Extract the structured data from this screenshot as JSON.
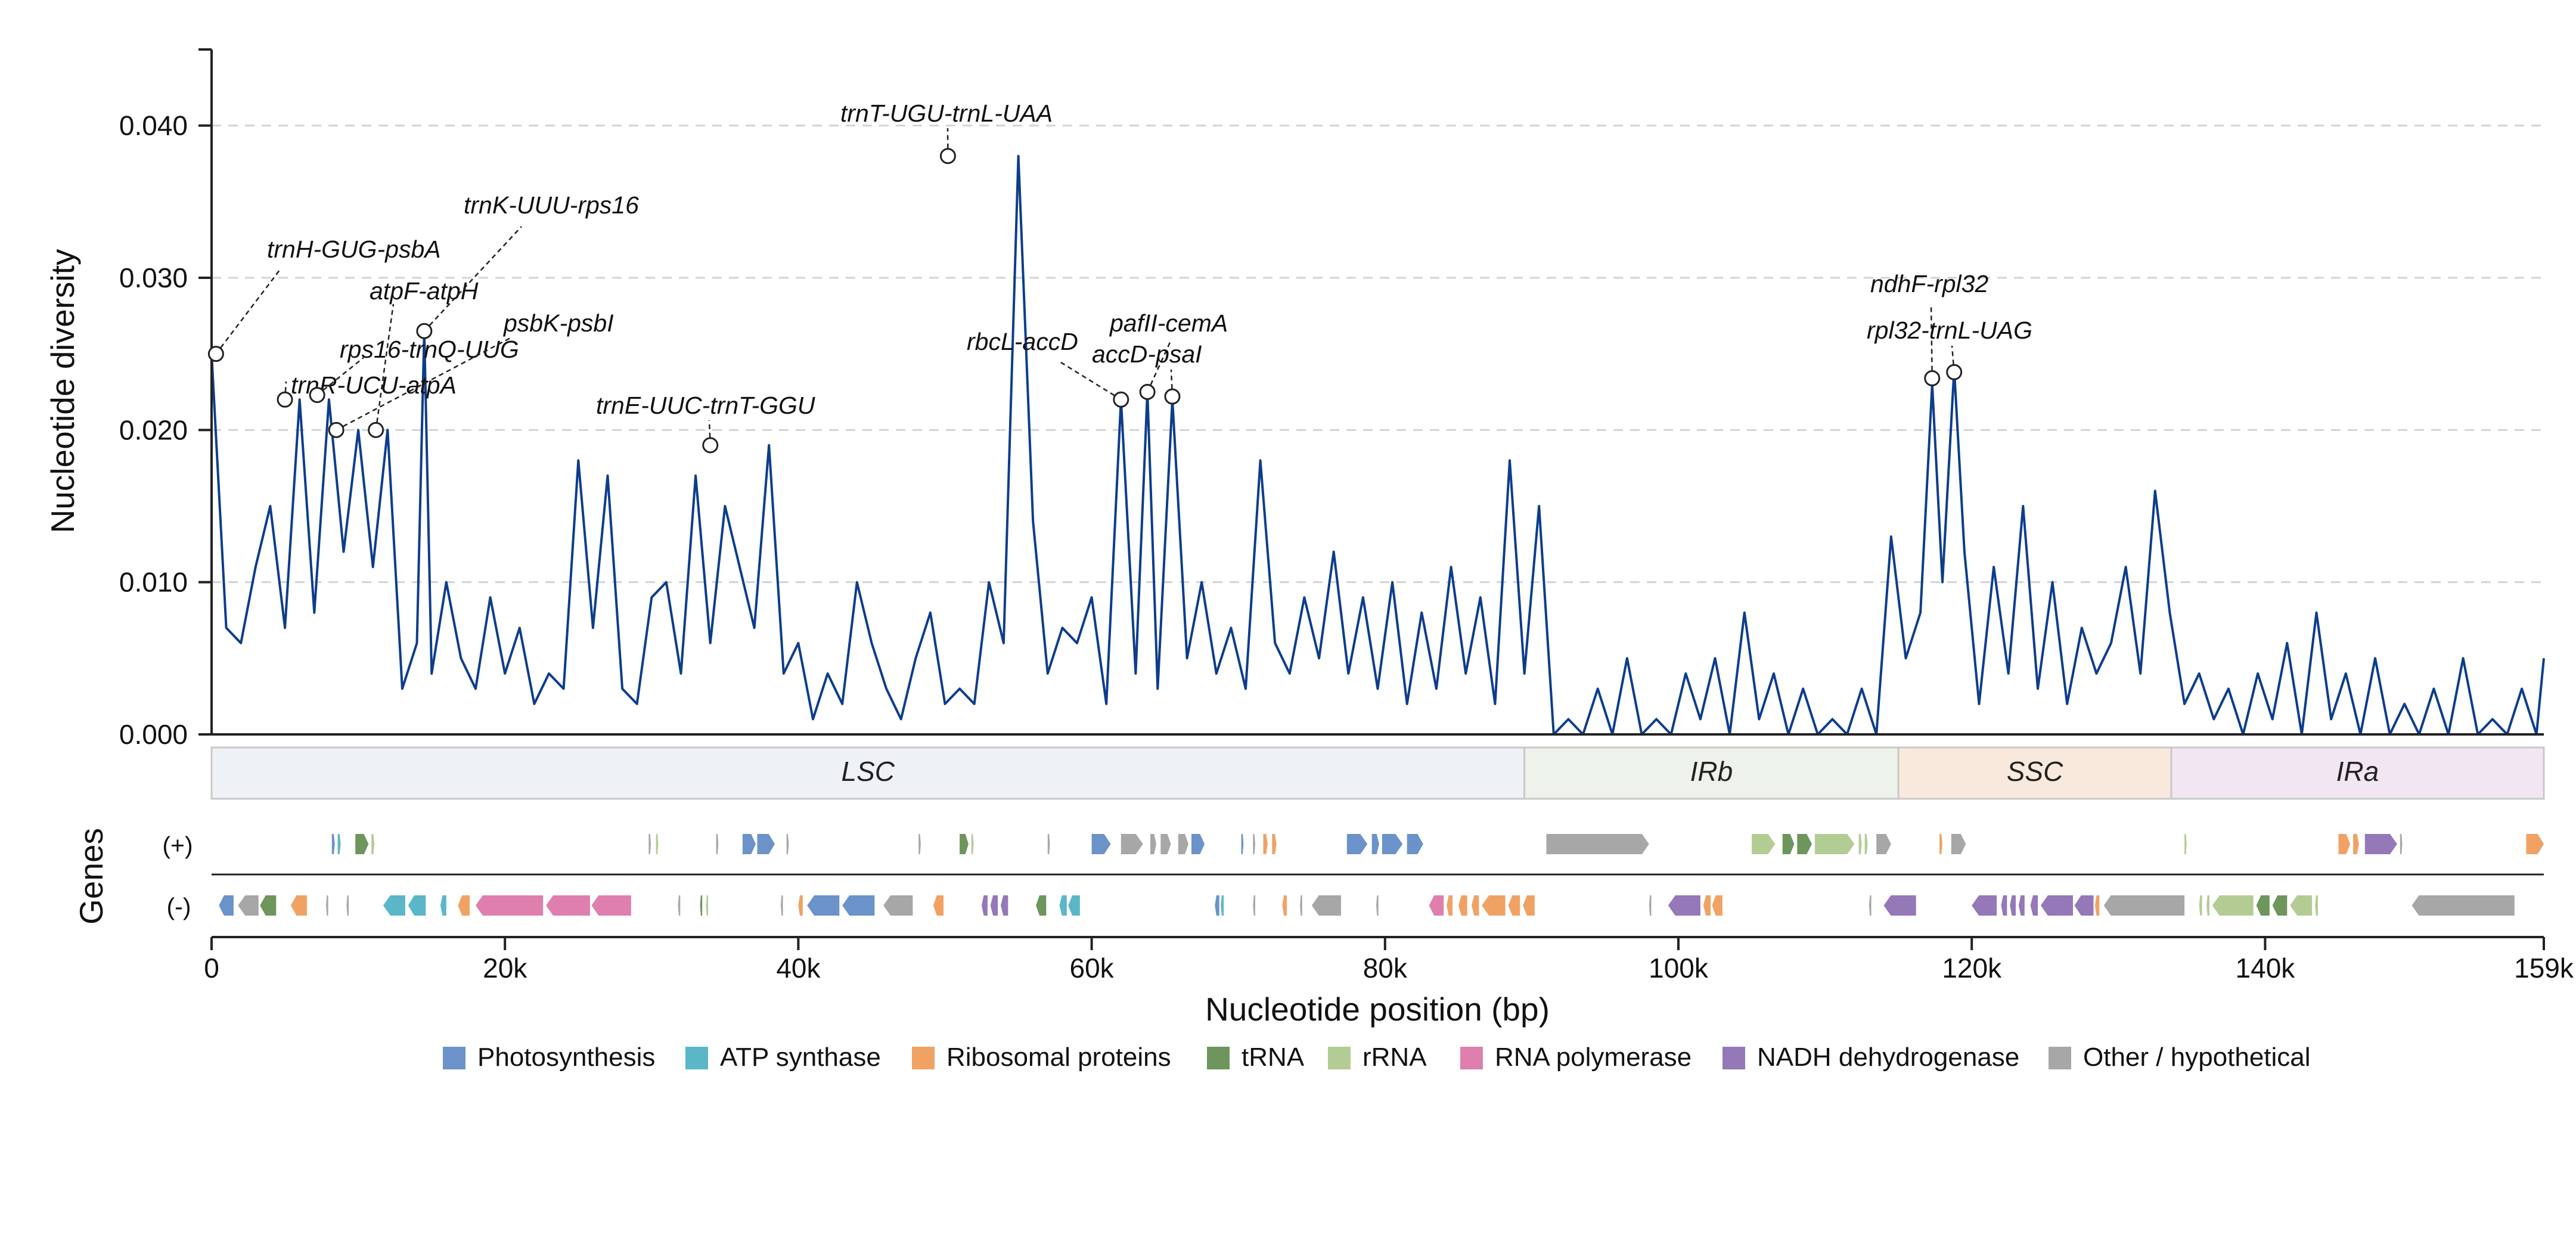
{
  "chart_data": {
    "type": "line",
    "xlabel": "Nucleotide position (bp)",
    "ylabel": "Nucleotide diversity",
    "xlim": [
      0,
      159000
    ],
    "ylim": [
      0,
      0.045
    ],
    "y_ticks": [
      "0.000",
      "0.010",
      "0.020",
      "0.030",
      "0.040"
    ],
    "x_ticks": [
      "0",
      "20k",
      "40k",
      "60k",
      "80k",
      "100k",
      "120k",
      "140k",
      "159k"
    ],
    "x_tick_values": [
      0,
      20000,
      40000,
      60000,
      80000,
      100000,
      120000,
      140000,
      159000
    ],
    "grid": "horizontal dashed",
    "line_color": "#0d3d8c",
    "series": [
      {
        "x": [
          0,
          1000,
          2000,
          3000,
          4000,
          5000,
          6000,
          7000,
          8000,
          9000,
          10000,
          11000,
          12000,
          13000,
          14000,
          14500,
          15000,
          16000,
          17000,
          18000,
          19000,
          20000,
          21000,
          22000,
          23000,
          24000,
          25000,
          26000,
          27000,
          28000,
          29000,
          30000,
          31000,
          32000,
          33000,
          34000,
          35000,
          36000,
          37000,
          38000,
          39000,
          40000,
          41000,
          42000,
          43000,
          44000,
          45000,
          46000,
          47000,
          48000,
          49000,
          50000,
          51000,
          52000,
          53000,
          54000,
          55000,
          56000,
          57000,
          58000,
          59000,
          60000,
          61000,
          62000,
          63000,
          63800,
          64500,
          65500,
          66500,
          67500,
          68500,
          69500,
          70500,
          71500,
          72500,
          73500,
          74500,
          75500,
          76500,
          77500,
          78500,
          79500,
          80500,
          81500,
          82500,
          83500,
          84500,
          85500,
          86500,
          87500,
          88500,
          89500,
          90500,
          91500,
          92500,
          93500,
          94500,
          95500,
          96500,
          97500,
          98500,
          99500,
          100500,
          101500,
          102500,
          103500,
          104500,
          105500,
          106500,
          107500,
          108500,
          109500,
          110500,
          111500,
          112500,
          113500,
          114500,
          115500,
          116500,
          117300,
          118000,
          118800,
          119500,
          120500,
          121500,
          122500,
          123500,
          124500,
          125500,
          126500,
          127500,
          128500,
          129500,
          130500,
          131500,
          132500,
          133500,
          134500,
          135500,
          136500,
          137500,
          138500,
          139500,
          140500,
          141500,
          142500,
          143500,
          144500,
          145500,
          146500,
          147500,
          148500,
          149500,
          150500,
          151500,
          152500,
          153500,
          154500,
          155500,
          156500,
          157500,
          158500,
          159000
        ],
        "values": [
          0.025,
          0.007,
          0.006,
          0.011,
          0.015,
          0.007,
          0.022,
          0.008,
          0.022,
          0.012,
          0.02,
          0.011,
          0.02,
          0.003,
          0.006,
          0.0265,
          0.004,
          0.01,
          0.005,
          0.003,
          0.009,
          0.004,
          0.007,
          0.002,
          0.004,
          0.003,
          0.018,
          0.007,
          0.017,
          0.003,
          0.002,
          0.009,
          0.01,
          0.004,
          0.017,
          0.006,
          0.015,
          0.011,
          0.007,
          0.019,
          0.004,
          0.006,
          0.001,
          0.004,
          0.002,
          0.01,
          0.006,
          0.003,
          0.001,
          0.005,
          0.008,
          0.002,
          0.003,
          0.002,
          0.01,
          0.006,
          0.038,
          0.014,
          0.004,
          0.007,
          0.006,
          0.009,
          0.002,
          0.022,
          0.004,
          0.0225,
          0.003,
          0.022,
          0.005,
          0.01,
          0.004,
          0.007,
          0.003,
          0.018,
          0.006,
          0.004,
          0.009,
          0.005,
          0.012,
          0.004,
          0.009,
          0.003,
          0.01,
          0.002,
          0.008,
          0.003,
          0.011,
          0.004,
          0.009,
          0.002,
          0.018,
          0.004,
          0.015,
          0.0,
          0.001,
          0.0,
          0.003,
          0.0,
          0.005,
          0.0,
          0.001,
          0.0,
          0.004,
          0.001,
          0.005,
          0.0,
          0.008,
          0.001,
          0.004,
          0.0,
          0.003,
          0.0,
          0.001,
          0.0,
          0.003,
          0.0,
          0.013,
          0.005,
          0.008,
          0.023,
          0.01,
          0.024,
          0.012,
          0.002,
          0.011,
          0.004,
          0.015,
          0.003,
          0.01,
          0.002,
          0.007,
          0.004,
          0.006,
          0.011,
          0.004,
          0.016,
          0.008,
          0.002,
          0.004,
          0.001,
          0.003,
          0.0,
          0.004,
          0.001,
          0.006,
          0.0,
          0.008,
          0.001,
          0.004,
          0.0,
          0.005,
          0.0,
          0.002,
          0.0,
          0.003,
          0.0,
          0.005,
          0.0,
          0.001,
          0.0,
          0.003,
          0.0,
          0.005
        ]
      }
    ],
    "peaks": [
      {
        "label": "trnH-GUG-psbA",
        "x": 300,
        "y": 0.025
      },
      {
        "label": "trnR-UCU-atpA",
        "x": 5000,
        "y": 0.022
      },
      {
        "label": "rps16-trnQ-UUG",
        "x": 7200,
        "y": 0.0223
      },
      {
        "label": "psbK-psbI",
        "x": 8500,
        "y": 0.02
      },
      {
        "label": "atpF-atpH",
        "x": 11200,
        "y": 0.02
      },
      {
        "label": "trnK-UUU-rps16",
        "x": 14500,
        "y": 0.0265
      },
      {
        "label": "trnE-UUC-trnT-GGU",
        "x": 34000,
        "y": 0.019
      },
      {
        "label": "trnT-UGU-trnL-UAA",
        "x": 50200,
        "y": 0.038
      },
      {
        "label": "rbcL-accD",
        "x": 62000,
        "y": 0.022
      },
      {
        "label": "pafII-cemA",
        "x": 63800,
        "y": 0.0225
      },
      {
        "label": "accD-psaI",
        "x": 65500,
        "y": 0.0222
      },
      {
        "label": "ndhF-rpl32",
        "x": 117300,
        "y": 0.0234
      },
      {
        "label": "rpl32-trnL-UAG",
        "x": 118800,
        "y": 0.0238
      }
    ],
    "regions": [
      {
        "label": "LSC",
        "start": 0,
        "end": 89500,
        "color": "#eef2f6"
      },
      {
        "label": "IRb",
        "start": 89500,
        "end": 115000,
        "color": "#edf2ea"
      },
      {
        "label": "SSC",
        "start": 115000,
        "end": 133600,
        "color": "#f9e9dc"
      },
      {
        "label": "IRa",
        "start": 133600,
        "end": 159000,
        "color": "#f1e6f1"
      }
    ],
    "gene_track": {
      "title": "Genes",
      "strand_plus": "(+)",
      "strand_minus": "(-)",
      "plus": [
        {
          "s": 8200,
          "e": 8400,
          "c": "photo"
        },
        {
          "s": 8600,
          "e": 8800,
          "c": "atp"
        },
        {
          "s": 9800,
          "e": 10700,
          "c": "trna"
        },
        {
          "s": 10900,
          "e": 11100,
          "c": "rrna"
        },
        {
          "s": 29800,
          "e": 29950,
          "c": "other"
        },
        {
          "s": 30300,
          "e": 30450,
          "c": "rrna"
        },
        {
          "s": 34400,
          "e": 34550,
          "c": "other"
        },
        {
          "s": 36200,
          "e": 37100,
          "c": "photo"
        },
        {
          "s": 37200,
          "e": 38400,
          "c": "photo"
        },
        {
          "s": 39200,
          "e": 39350,
          "c": "other"
        },
        {
          "s": 48200,
          "e": 48350,
          "c": "other"
        },
        {
          "s": 51000,
          "e": 51600,
          "c": "trna"
        },
        {
          "s": 51800,
          "e": 51950,
          "c": "rrna"
        },
        {
          "s": 57000,
          "e": 57150,
          "c": "other"
        },
        {
          "s": 60000,
          "e": 61300,
          "c": "photo"
        },
        {
          "s": 62000,
          "e": 63500,
          "c": "other"
        },
        {
          "s": 64000,
          "e": 64400,
          "c": "other"
        },
        {
          "s": 64700,
          "e": 65400,
          "c": "other"
        },
        {
          "s": 65900,
          "e": 66600,
          "c": "other"
        },
        {
          "s": 66800,
          "e": 67700,
          "c": "photo"
        },
        {
          "s": 70200,
          "e": 70350,
          "c": "photo"
        },
        {
          "s": 71000,
          "e": 71150,
          "c": "other"
        },
        {
          "s": 71700,
          "e": 72000,
          "c": "ribo"
        },
        {
          "s": 72300,
          "e": 72600,
          "c": "ribo"
        },
        {
          "s": 77400,
          "e": 78800,
          "c": "photo"
        },
        {
          "s": 79100,
          "e": 79600,
          "c": "photo"
        },
        {
          "s": 79800,
          "e": 81200,
          "c": "photo"
        },
        {
          "s": 81500,
          "e": 82600,
          "c": "photo"
        },
        {
          "s": 91000,
          "e": 98000,
          "c": "other"
        },
        {
          "s": 105000,
          "e": 106600,
          "c": "rrna"
        },
        {
          "s": 107100,
          "e": 107900,
          "c": "trna"
        },
        {
          "s": 108100,
          "e": 109100,
          "c": "trna"
        },
        {
          "s": 109300,
          "e": 112000,
          "c": "rrna"
        },
        {
          "s": 112300,
          "e": 112500,
          "c": "rrna"
        },
        {
          "s": 112700,
          "e": 112900,
          "c": "rrna"
        },
        {
          "s": 113500,
          "e": 114500,
          "c": "other"
        },
        {
          "s": 117800,
          "e": 118000,
          "c": "ribo"
        },
        {
          "s": 118600,
          "e": 119600,
          "c": "other"
        },
        {
          "s": 134500,
          "e": 134650,
          "c": "rrna"
        },
        {
          "s": 145000,
          "e": 145800,
          "c": "ribo"
        },
        {
          "s": 146000,
          "e": 146400,
          "c": "ribo"
        },
        {
          "s": 146800,
          "e": 149000,
          "c": "nadh"
        },
        {
          "s": 149200,
          "e": 149350,
          "c": "other"
        },
        {
          "s": 157800,
          "e": 159000,
          "c": "ribo"
        }
      ],
      "minus": [
        {
          "s": 500,
          "e": 1500,
          "c": "photo"
        },
        {
          "s": 1800,
          "e": 3200,
          "c": "other"
        },
        {
          "s": 3300,
          "e": 4400,
          "c": "trna"
        },
        {
          "s": 5400,
          "e": 6500,
          "c": "ribo"
        },
        {
          "s": 7800,
          "e": 7950,
          "c": "other"
        },
        {
          "s": 9200,
          "e": 9350,
          "c": "other"
        },
        {
          "s": 11700,
          "e": 13200,
          "c": "atp"
        },
        {
          "s": 13400,
          "e": 14600,
          "c": "atp"
        },
        {
          "s": 15600,
          "e": 16000,
          "c": "atp"
        },
        {
          "s": 16800,
          "e": 17600,
          "c": "ribo"
        },
        {
          "s": 18000,
          "e": 22600,
          "c": "rnap"
        },
        {
          "s": 22800,
          "e": 25800,
          "c": "rnap"
        },
        {
          "s": 25900,
          "e": 28600,
          "c": "rnap"
        },
        {
          "s": 31800,
          "e": 31950,
          "c": "other"
        },
        {
          "s": 33300,
          "e": 33450,
          "c": "trna"
        },
        {
          "s": 33700,
          "e": 33850,
          "c": "rrna"
        },
        {
          "s": 38800,
          "e": 38950,
          "c": "other"
        },
        {
          "s": 40000,
          "e": 40300,
          "c": "ribo"
        },
        {
          "s": 40600,
          "e": 42800,
          "c": "photo"
        },
        {
          "s": 43000,
          "e": 45200,
          "c": "photo"
        },
        {
          "s": 45800,
          "e": 47800,
          "c": "other"
        },
        {
          "s": 49200,
          "e": 49900,
          "c": "ribo"
        },
        {
          "s": 52500,
          "e": 52900,
          "c": "nadh"
        },
        {
          "s": 53100,
          "e": 53600,
          "c": "nadh"
        },
        {
          "s": 53800,
          "e": 54300,
          "c": "nadh"
        },
        {
          "s": 56200,
          "e": 56900,
          "c": "trna"
        },
        {
          "s": 57800,
          "e": 58300,
          "c": "atp"
        },
        {
          "s": 58400,
          "e": 59200,
          "c": "atp"
        },
        {
          "s": 68400,
          "e": 68700,
          "c": "photo"
        },
        {
          "s": 68800,
          "e": 69000,
          "c": "atp"
        },
        {
          "s": 71000,
          "e": 71150,
          "c": "other"
        },
        {
          "s": 73000,
          "e": 73300,
          "c": "ribo"
        },
        {
          "s": 74200,
          "e": 74350,
          "c": "other"
        },
        {
          "s": 75000,
          "e": 77000,
          "c": "other"
        },
        {
          "s": 79400,
          "e": 79550,
          "c": "other"
        },
        {
          "s": 83000,
          "e": 84000,
          "c": "rnap"
        },
        {
          "s": 84200,
          "e": 84600,
          "c": "ribo"
        },
        {
          "s": 85000,
          "e": 85600,
          "c": "ribo"
        },
        {
          "s": 85900,
          "e": 86400,
          "c": "ribo"
        },
        {
          "s": 86600,
          "e": 88200,
          "c": "ribo"
        },
        {
          "s": 88400,
          "e": 89200,
          "c": "ribo"
        },
        {
          "s": 89400,
          "e": 90200,
          "c": "ribo"
        },
        {
          "s": 98000,
          "e": 98150,
          "c": "other"
        },
        {
          "s": 99300,
          "e": 101500,
          "c": "nadh"
        },
        {
          "s": 101700,
          "e": 102200,
          "c": "ribo"
        },
        {
          "s": 102300,
          "e": 103000,
          "c": "ribo"
        },
        {
          "s": 113000,
          "e": 113150,
          "c": "other"
        },
        {
          "s": 114000,
          "e": 116200,
          "c": "nadh"
        },
        {
          "s": 120000,
          "e": 121700,
          "c": "nadh"
        },
        {
          "s": 122000,
          "e": 122400,
          "c": "nadh"
        },
        {
          "s": 122600,
          "e": 123000,
          "c": "nadh"
        },
        {
          "s": 123200,
          "e": 123600,
          "c": "nadh"
        },
        {
          "s": 124000,
          "e": 124500,
          "c": "nadh"
        },
        {
          "s": 124700,
          "e": 126900,
          "c": "nadh"
        },
        {
          "s": 127000,
          "e": 128300,
          "c": "nadh"
        },
        {
          "s": 128400,
          "e": 128700,
          "c": "ribo"
        },
        {
          "s": 129000,
          "e": 134500,
          "c": "other"
        },
        {
          "s": 135500,
          "e": 135700,
          "c": "rrna"
        },
        {
          "s": 136000,
          "e": 136200,
          "c": "rrna"
        },
        {
          "s": 136400,
          "e": 139200,
          "c": "rrna"
        },
        {
          "s": 139400,
          "e": 140300,
          "c": "trna"
        },
        {
          "s": 140500,
          "e": 141500,
          "c": "trna"
        },
        {
          "s": 141700,
          "e": 143200,
          "c": "rrna"
        },
        {
          "s": 143400,
          "e": 143600,
          "c": "rrna"
        },
        {
          "s": 150000,
          "e": 157000,
          "c": "other"
        }
      ]
    },
    "legend": {
      "placement": "bottom",
      "items": [
        {
          "key": "photo",
          "label": "Photosynthesis",
          "color": "#6b93c9"
        },
        {
          "key": "atp",
          "label": "ATP synthase",
          "color": "#5bb7c7"
        },
        {
          "key": "ribo",
          "label": "Ribosomal proteins",
          "color": "#f0a264"
        },
        {
          "key": "trna",
          "label": "tRNA",
          "color": "#6e955c"
        },
        {
          "key": "rrna",
          "label": "rRNA",
          "color": "#b3cc94"
        },
        {
          "key": "rnap",
          "label": "RNA polymerase",
          "color": "#df7fae"
        },
        {
          "key": "nadh",
          "label": "NADH dehydrogenase",
          "color": "#9478b8"
        },
        {
          "key": "other",
          "label": "Other / hypothetical",
          "color": "#a7a7a7"
        }
      ]
    }
  }
}
